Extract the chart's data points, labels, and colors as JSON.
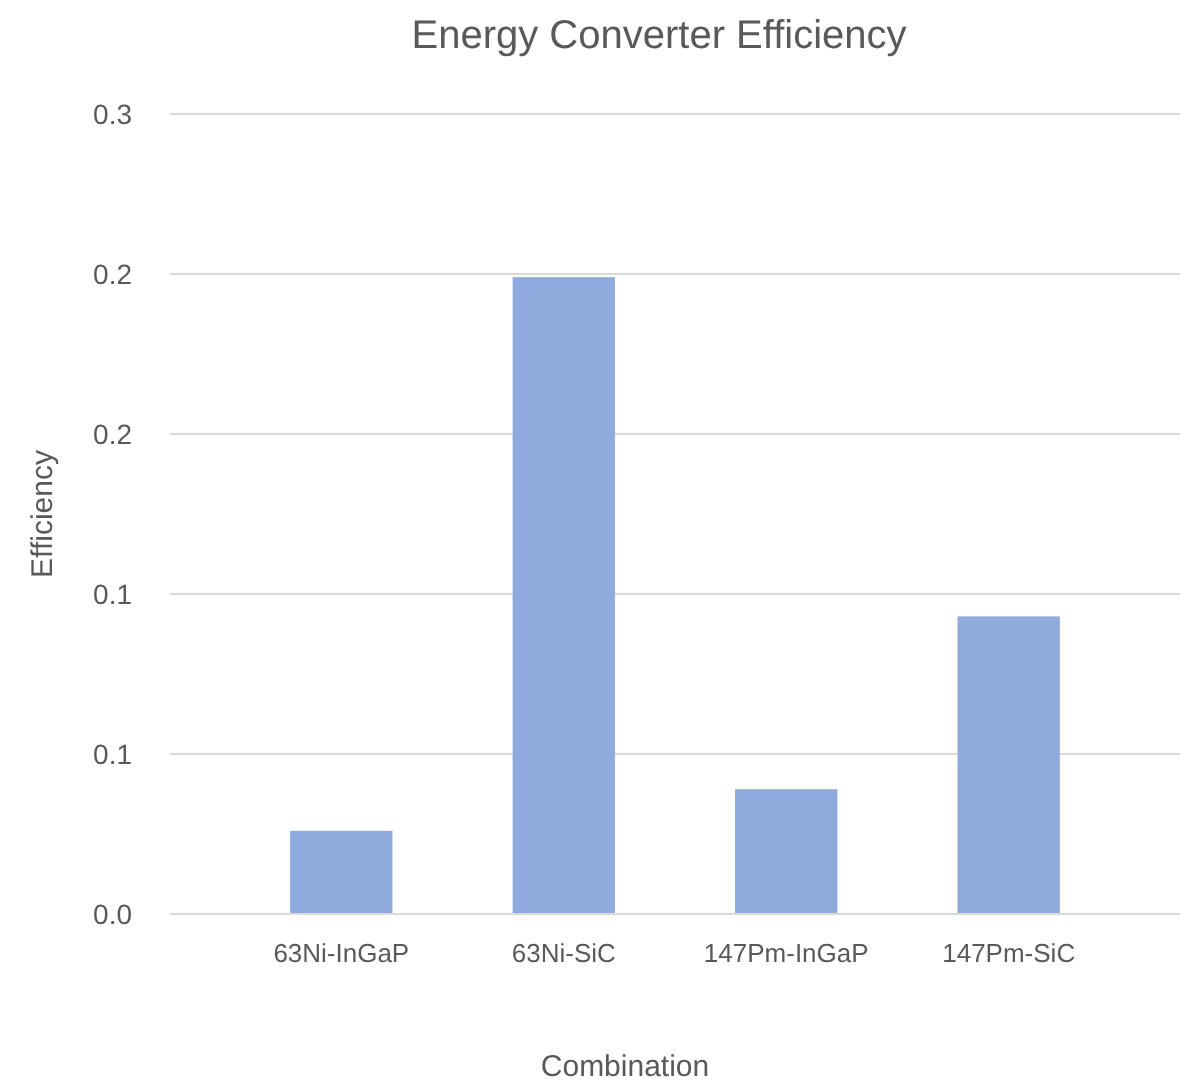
{
  "chart_data": {
    "type": "bar",
    "title": "Energy Converter Efficiency",
    "xlabel": "Combination",
    "ylabel": "Efficiency",
    "categories": [
      "63Ni-InGaP",
      "63Ni-SiC",
      "147Pm-InGaP",
      "147Pm-SiC"
    ],
    "values": [
      0.026,
      0.199,
      0.039,
      0.093
    ],
    "color": "#8faadc",
    "ylim": [
      0,
      0.25
    ],
    "yticks": [
      {
        "value": 0,
        "label": "0.0"
      },
      {
        "value": 0.05,
        "label": "0.1"
      },
      {
        "value": 0.1,
        "label": "0.1"
      },
      {
        "value": 0.15,
        "label": "0.2"
      },
      {
        "value": 0.2,
        "label": "0.2"
      },
      {
        "value": 0.25,
        "label": "0.3"
      }
    ],
    "grid": "y"
  }
}
